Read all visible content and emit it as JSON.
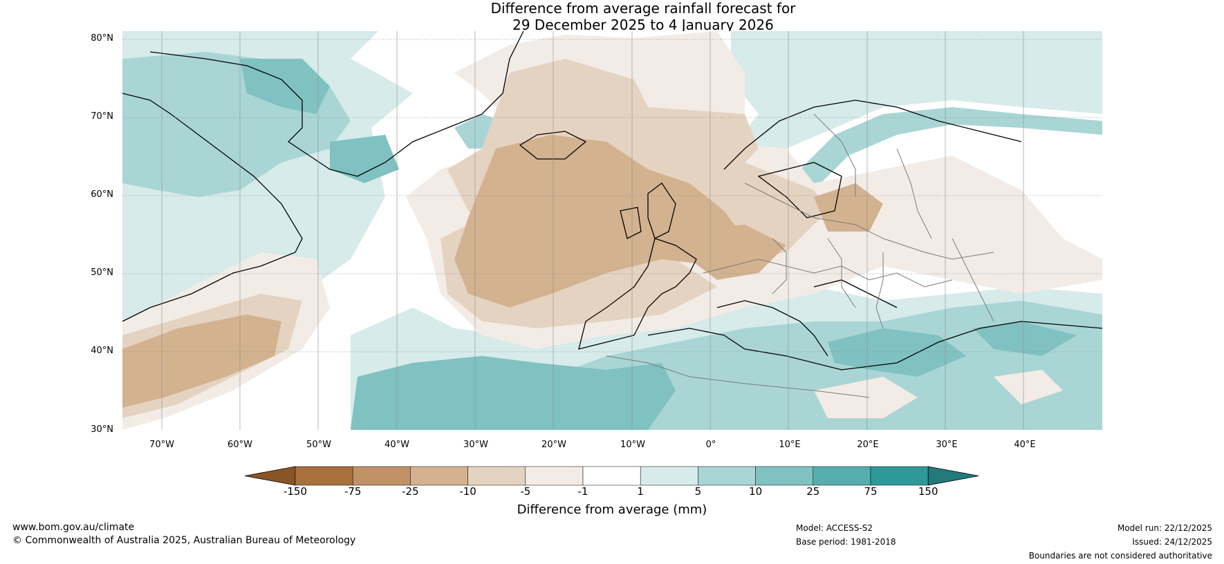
{
  "title": {
    "line1": "Difference from average rainfall forecast for",
    "line2": "29 December 2025 to 4 January 2026"
  },
  "map": {
    "lat_labels": [
      "80°N",
      "70°N",
      "60°N",
      "50°N",
      "40°N",
      "30°N"
    ],
    "lon_labels": [
      "70°W",
      "60°W",
      "50°W",
      "40°W",
      "30°W",
      "20°W",
      "10°W",
      "0°",
      "10°E",
      "20°E",
      "30°E",
      "40°E"
    ],
    "extent": {
      "lon": [
        -75,
        50
      ],
      "lat": [
        30,
        81
      ]
    }
  },
  "colorbar": {
    "ticks": [
      "-150",
      "-75",
      "-25",
      "-10",
      "-5",
      "-1",
      "1",
      "5",
      "10",
      "25",
      "75",
      "150"
    ],
    "colors": [
      "#8a5526",
      "#a8703d",
      "#c19266",
      "#d3b290",
      "#e5d3c1",
      "#f3ece6",
      "#ffffff",
      "#d6ebea",
      "#a9d6d5",
      "#80c1c1",
      "#57aeae",
      "#2f9999",
      "#227a7a"
    ],
    "title": "Difference from average (mm)"
  },
  "footer": {
    "website": "www.bom.gov.au/climate",
    "copyright": "© Commonwealth of Australia 2025, Australian Bureau of Meteorology",
    "model": "Model: ACCESS-S2",
    "base_period": "Base period: 1981-2018",
    "model_run": "Model run: 22/12/2025",
    "issued": "Issued: 24/12/2025",
    "disclaimer": "Boundaries are not considered authoritative"
  }
}
